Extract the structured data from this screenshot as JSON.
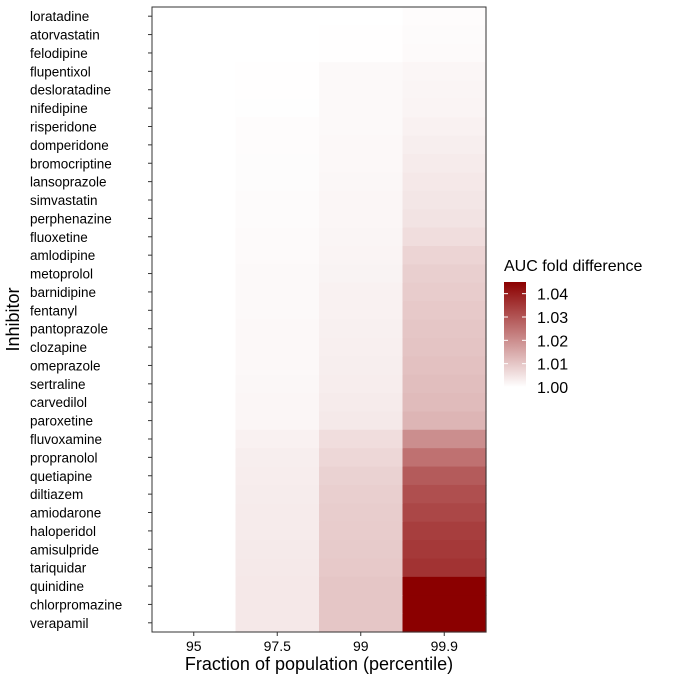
{
  "chart_data": {
    "type": "heatmap",
    "xlabel": "Fraction of population (percentile)",
    "ylabel": "Inhibitor",
    "x_categories": [
      "95",
      "97.5",
      "99",
      "99.9"
    ],
    "y_categories": [
      "loratadine",
      "atorvastatin",
      "felodipine",
      "flupentixol",
      "desloratadine",
      "nifedipine",
      "risperidone",
      "domperidone",
      "bromocriptine",
      "lansoprazole",
      "simvastatin",
      "perphenazine",
      "fluoxetine",
      "amlodipine",
      "metoprolol",
      "barnidipine",
      "fentanyl",
      "pantoprazole",
      "clozapine",
      "omeprazole",
      "sertraline",
      "carvedilol",
      "paroxetine",
      "fluvoxamine",
      "propranolol",
      "quetiapine",
      "diltiazem",
      "amiodarone",
      "haloperidol",
      "amisulpride",
      "tariquidar",
      "quinidine",
      "chlorpromazine",
      "verapamil"
    ],
    "values": [
      [
        1.0,
        1.0,
        1.0,
        1.0005
      ],
      [
        1.0,
        1.0,
        1.0001,
        1.0007
      ],
      [
        1.0,
        1.0,
        1.0001,
        1.0008
      ],
      [
        1.0,
        1.0001,
        1.001,
        1.0015
      ],
      [
        1.0,
        1.0001,
        1.001,
        1.0018
      ],
      [
        1.0,
        1.0002,
        1.001,
        1.002
      ],
      [
        1.0,
        1.0005,
        1.0011,
        1.0025
      ],
      [
        1.0,
        1.0005,
        1.0012,
        1.003
      ],
      [
        1.0,
        1.0006,
        1.0012,
        1.0035
      ],
      [
        1.0,
        1.0006,
        1.0014,
        1.004
      ],
      [
        1.0,
        1.0007,
        1.0015,
        1.0045
      ],
      [
        1.0,
        1.0007,
        1.0016,
        1.005
      ],
      [
        1.0,
        1.0008,
        1.0018,
        1.006
      ],
      [
        1.0,
        1.0009,
        1.002,
        1.0075
      ],
      [
        1.0,
        1.001,
        1.0022,
        1.0085
      ],
      [
        1.0,
        1.001,
        1.0024,
        1.009
      ],
      [
        1.0,
        1.0011,
        1.0025,
        1.0095
      ],
      [
        1.0,
        1.0012,
        1.0027,
        1.01
      ],
      [
        1.0,
        1.0013,
        1.0028,
        1.0105
      ],
      [
        1.0,
        1.0013,
        1.003,
        1.011
      ],
      [
        1.0,
        1.0014,
        1.0032,
        1.0115
      ],
      [
        1.0,
        1.0015,
        1.0035,
        1.012
      ],
      [
        1.0,
        1.0016,
        1.0038,
        1.013
      ],
      [
        1.0,
        1.0025,
        1.006,
        1.02
      ],
      [
        1.0,
        1.003,
        1.007,
        1.025
      ],
      [
        1.0,
        1.0032,
        1.008,
        1.029
      ],
      [
        1.0,
        1.0034,
        1.0085,
        1.031
      ],
      [
        1.0,
        1.0035,
        1.0088,
        1.0325
      ],
      [
        1.0,
        1.0036,
        1.009,
        1.034
      ],
      [
        1.0,
        1.0037,
        1.0092,
        1.035
      ],
      [
        1.0,
        1.0038,
        1.0095,
        1.036
      ],
      [
        1.0,
        1.004,
        1.01,
        1.045
      ],
      [
        1.0,
        1.004,
        1.01,
        1.045
      ],
      [
        1.0,
        1.004,
        1.01,
        1.045
      ]
    ],
    "legend": {
      "title": "AUC fold difference",
      "ticks": [
        "1.04",
        "1.03",
        "1.02",
        "1.01",
        "1.00"
      ],
      "tick_values": [
        1.04,
        1.03,
        1.02,
        1.01,
        1.0
      ],
      "range": [
        1.0,
        1.045
      ],
      "low_color": "#ffffff",
      "high_color": "#8b0000"
    }
  }
}
